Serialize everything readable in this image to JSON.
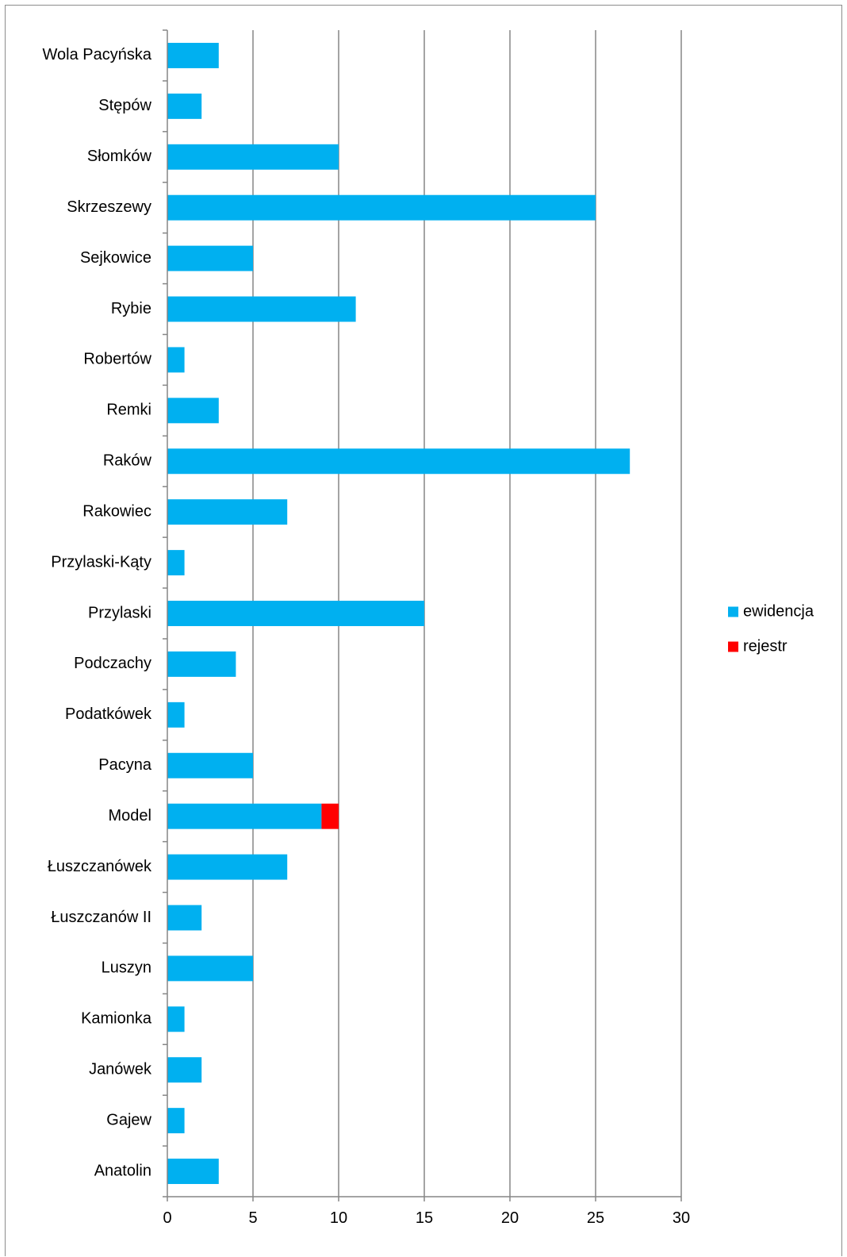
{
  "chart_data": {
    "type": "bar",
    "orientation": "horizontal",
    "stacked": true,
    "categories": [
      "Wola Pacyńska",
      "Stępów",
      "Słomków",
      "Skrzeszewy",
      "Sejkowice",
      "Rybie",
      "Robertów",
      "Remki",
      "Raków",
      "Rakowiec",
      "Przylaski-Kąty",
      "Przylaski",
      "Podczachy",
      "Podatkówek",
      "Pacyna",
      "Model",
      "Łuszczanówek",
      "Łuszczanów II",
      "Luszyn",
      "Kamionka",
      "Janówek",
      "Gajew",
      "Anatolin"
    ],
    "series": [
      {
        "name": "ewidencja",
        "color": "#00B0F0",
        "values": [
          3,
          2,
          10,
          25,
          5,
          11,
          1,
          3,
          27,
          7,
          1,
          15,
          4,
          1,
          5,
          9,
          7,
          2,
          5,
          1,
          2,
          1,
          3
        ]
      },
      {
        "name": "rejestr",
        "color": "#FF0000",
        "values": [
          0,
          0,
          0,
          0,
          0,
          0,
          0,
          0,
          0,
          0,
          0,
          0,
          0,
          0,
          0,
          1,
          0,
          0,
          0,
          0,
          0,
          0,
          0
        ]
      }
    ],
    "xlim": [
      0,
      30
    ],
    "xticks": [
      0,
      5,
      10,
      15,
      20,
      25,
      30
    ],
    "xlabel": "",
    "ylabel": "",
    "title": "",
    "grid": "vertical major gridlines",
    "legend_position": "right",
    "colors": {
      "gridline": "#868686",
      "axis": "#868686",
      "frame": "#8c8c8c"
    }
  }
}
